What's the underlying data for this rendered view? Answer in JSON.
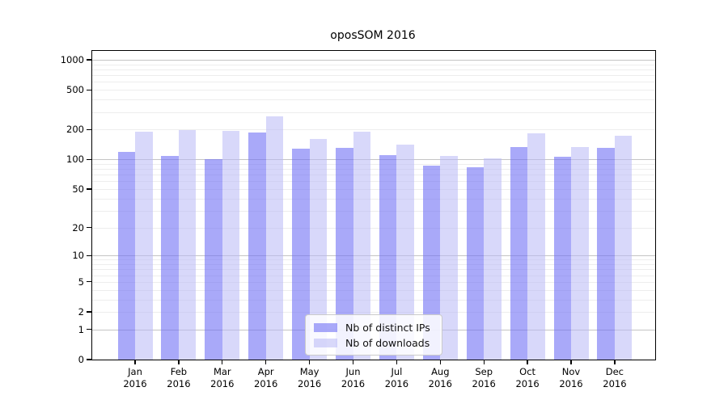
{
  "chart_data": {
    "type": "bar",
    "title": "oposSOM 2016",
    "categories": [
      "Jan",
      "Feb",
      "Mar",
      "Apr",
      "May",
      "Jun",
      "Jul",
      "Aug",
      "Sep",
      "Oct",
      "Nov",
      "Dec"
    ],
    "x_tick_year": "2016",
    "series": [
      {
        "name": "Nb of distinct IPs",
        "color": "#a9a9f7",
        "values": [
          118,
          108,
          100,
          186,
          128,
          130,
          110,
          86,
          83,
          132,
          106,
          130
        ]
      },
      {
        "name": "Nb of downloads",
        "color": "#d9d9f8",
        "values": [
          190,
          196,
          192,
          272,
          160,
          189,
          140,
          108,
          102,
          182,
          132,
          172
        ]
      }
    ],
    "y_ticks": [
      0,
      1,
      2,
      5,
      10,
      20,
      50,
      100,
      200,
      500,
      1000
    ],
    "y_scale": "log1p",
    "ylim": [
      0,
      1300
    ],
    "grid": true,
    "legend": {
      "position": "lower center"
    }
  }
}
